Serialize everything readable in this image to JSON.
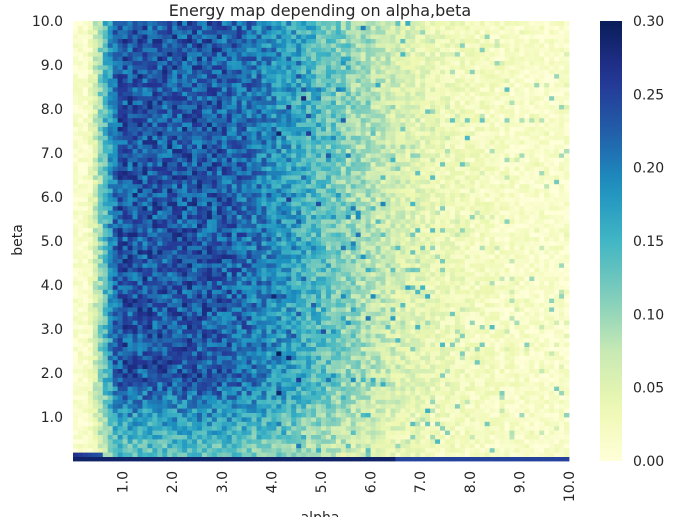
{
  "chart_data": {
    "type": "heatmap",
    "title": "Energy map depending on alpha,beta",
    "xlabel": "alpha",
    "ylabel": "beta",
    "xlim": [
      0,
      10
    ],
    "ylim": [
      0,
      10
    ],
    "x_ticks": [
      "1.0",
      "2.0",
      "3.0",
      "4.0",
      "5.0",
      "6.0",
      "7.0",
      "8.0",
      "9.0",
      "10.0"
    ],
    "x_tick_values": [
      1,
      2,
      3,
      4,
      5,
      6,
      7,
      8,
      9,
      10
    ],
    "y_ticks": [
      "1.0",
      "2.0",
      "3.0",
      "4.0",
      "5.0",
      "6.0",
      "7.0",
      "8.0",
      "9.0",
      "10.0"
    ],
    "y_tick_values": [
      1,
      2,
      3,
      4,
      5,
      6,
      7,
      8,
      9,
      10
    ],
    "colorbar": {
      "colormap": "YlGnBu",
      "range": [
        0.0,
        0.3
      ],
      "ticks": [
        "0.00",
        "0.05",
        "0.10",
        "0.15",
        "0.20",
        "0.25",
        "0.30"
      ],
      "tick_values": [
        0.0,
        0.05,
        0.1,
        0.15,
        0.2,
        0.25,
        0.3
      ]
    },
    "grid_size": [
      100,
      100
    ],
    "grid_resolution": 0.1,
    "value_description": "Energy value per (alpha, beta) cell",
    "features": {
      "peak_region": {
        "alpha_range": [
          0.7,
          4.5
        ],
        "beta_range": [
          1.5,
          10.0
        ],
        "approx_value": 0.22
      },
      "fade_region": {
        "alpha_range": [
          4.5,
          7.5
        ],
        "beta_range": [
          0.5,
          10.0
        ],
        "approx_value": 0.08
      },
      "low_region": {
        "alpha_range": [
          7.5,
          10.0
        ],
        "beta_range": [
          0.5,
          10.0
        ],
        "approx_value": 0.03
      },
      "near_zero_alpha": {
        "alpha_range": [
          0.0,
          0.5
        ],
        "beta_range": [
          1.0,
          10.0
        ],
        "approx_value": 0.0
      },
      "bottom_band": {
        "alpha_range": [
          0.0,
          10.0
        ],
        "beta_range": [
          0.0,
          0.1
        ],
        "approx_value": 0.3
      }
    }
  }
}
